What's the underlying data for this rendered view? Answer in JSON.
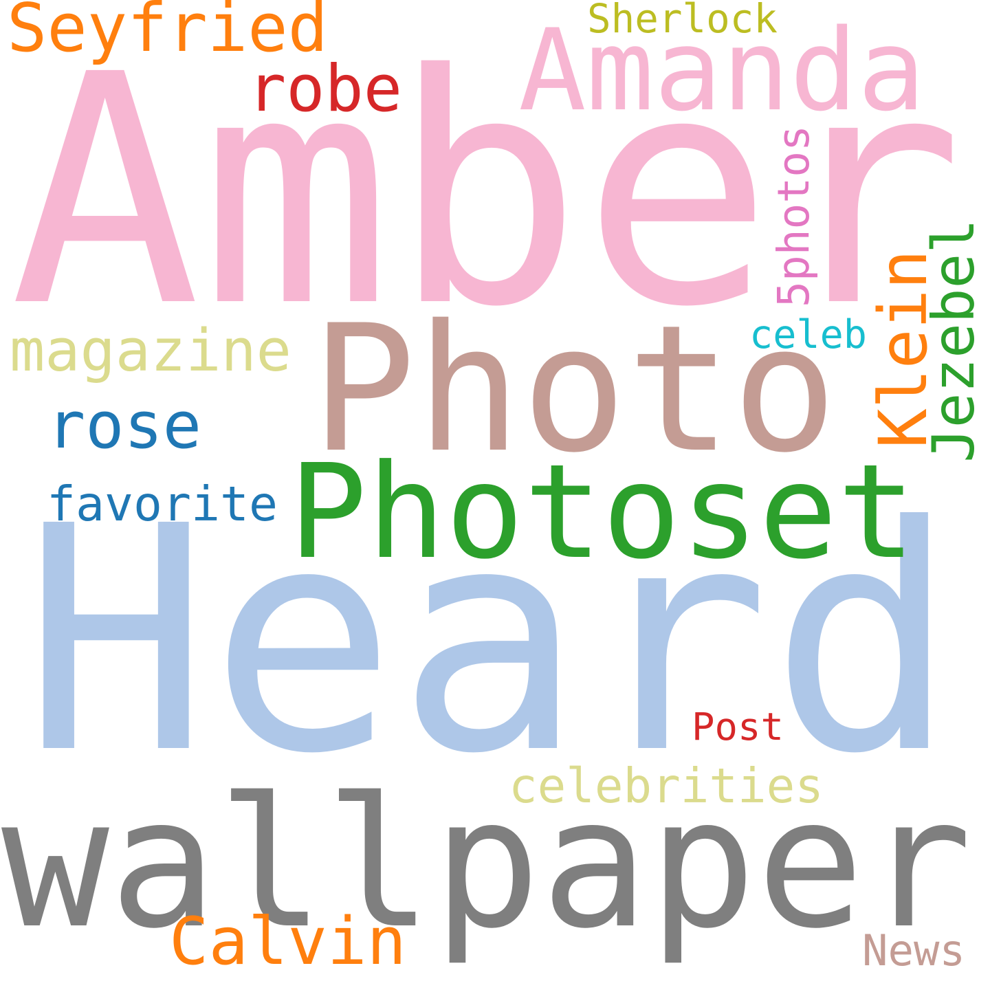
{
  "background": "#ffffff",
  "words": [
    {
      "text": "Amber",
      "color": "#f7b6d2",
      "orientation": "horizontal"
    },
    {
      "text": "Heard",
      "color": "#aec7e8",
      "orientation": "horizontal"
    },
    {
      "text": "wallpaper",
      "color": "#7f7f7f",
      "orientation": "horizontal"
    },
    {
      "text": "Photo",
      "color": "#c49c94",
      "orientation": "horizontal"
    },
    {
      "text": "Photoset",
      "color": "#2ca02c",
      "orientation": "horizontal"
    },
    {
      "text": "Amanda",
      "color": "#f7b6d2",
      "orientation": "horizontal"
    },
    {
      "text": "Seyfried",
      "color": "#ff7f0e",
      "orientation": "horizontal"
    },
    {
      "text": "Calvin",
      "color": "#ff7f0e",
      "orientation": "horizontal"
    },
    {
      "text": "Klein",
      "color": "#ff7f0e",
      "orientation": "vertical"
    },
    {
      "text": "Jezebel",
      "color": "#2ca02c",
      "orientation": "vertical"
    },
    {
      "text": "robe",
      "color": "#d62728",
      "orientation": "horizontal"
    },
    {
      "text": "rose",
      "color": "#1f77b4",
      "orientation": "horizontal"
    },
    {
      "text": "magazine",
      "color": "#dbdb8d",
      "orientation": "horizontal"
    },
    {
      "text": "celebrities",
      "color": "#dbdb8d",
      "orientation": "horizontal"
    },
    {
      "text": "favorite",
      "color": "#1f77b4",
      "orientation": "horizontal"
    },
    {
      "text": "5photos",
      "color": "#e377c2",
      "orientation": "vertical"
    },
    {
      "text": "Sherlock",
      "color": "#bcbd22",
      "orientation": "horizontal"
    },
    {
      "text": "celeb",
      "color": "#17becf",
      "orientation": "horizontal"
    },
    {
      "text": "Post",
      "color": "#d62728",
      "orientation": "horizontal"
    },
    {
      "text": "News",
      "color": "#c49c94",
      "orientation": "horizontal"
    }
  ]
}
